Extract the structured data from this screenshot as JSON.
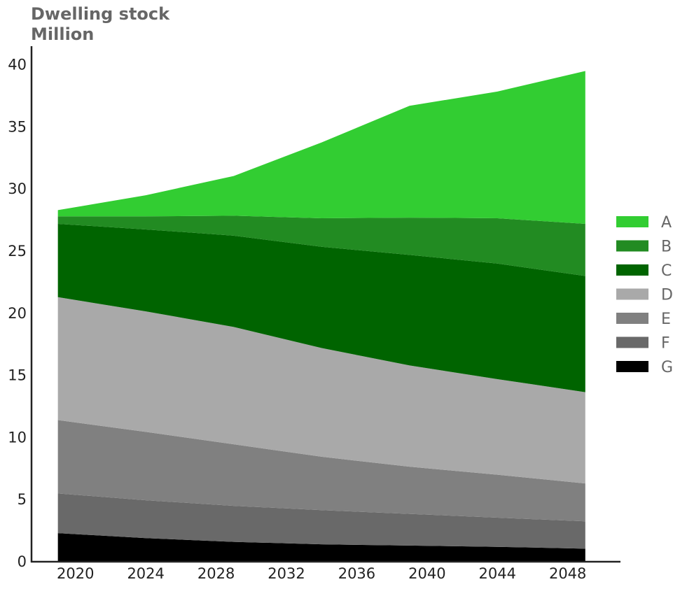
{
  "chart_data": {
    "type": "area",
    "stacked": true,
    "title": "Dwelling stock",
    "subtitle": "Million",
    "xlabel": "",
    "ylabel": "",
    "xlim": [
      2017.5,
      2051.0
    ],
    "ylim": [
      0,
      41.5
    ],
    "x_ticks": [
      2020,
      2024,
      2028,
      2032,
      2036,
      2040,
      2044,
      2048
    ],
    "y_ticks": [
      0,
      5,
      10,
      15,
      20,
      25,
      30,
      35,
      40
    ],
    "legend_position": "right",
    "grid": false,
    "x": [
      2019,
      2024,
      2029,
      2034,
      2039,
      2044,
      2049
    ],
    "series": [
      {
        "name": "G",
        "color": "#000000",
        "values": [
          2.3,
          1.9,
          1.6,
          1.4,
          1.3,
          1.2,
          1.05
        ]
      },
      {
        "name": "F",
        "color": "#696969",
        "values": [
          3.2,
          3.05,
          2.9,
          2.75,
          2.55,
          2.35,
          2.2
        ]
      },
      {
        "name": "E",
        "color": "#808080",
        "values": [
          5.9,
          5.5,
          4.95,
          4.3,
          3.8,
          3.45,
          3.05
        ]
      },
      {
        "name": "D",
        "color": "#a9a9a9",
        "values": [
          9.9,
          9.7,
          9.45,
          8.75,
          8.15,
          7.7,
          7.35
        ]
      },
      {
        "name": "C",
        "color": "#006400",
        "values": [
          5.9,
          6.6,
          7.35,
          8.15,
          8.9,
          9.3,
          9.35
        ]
      },
      {
        "name": "B",
        "color": "#228b22",
        "values": [
          0.6,
          1.05,
          1.6,
          2.3,
          3.0,
          3.65,
          4.2
        ]
      },
      {
        "name": "A",
        "color": "#32cd32",
        "values": [
          0.5,
          1.7,
          3.2,
          6.1,
          9.0,
          10.2,
          12.3
        ]
      }
    ],
    "legend_order": [
      "A",
      "B",
      "C",
      "D",
      "E",
      "F",
      "G"
    ]
  }
}
